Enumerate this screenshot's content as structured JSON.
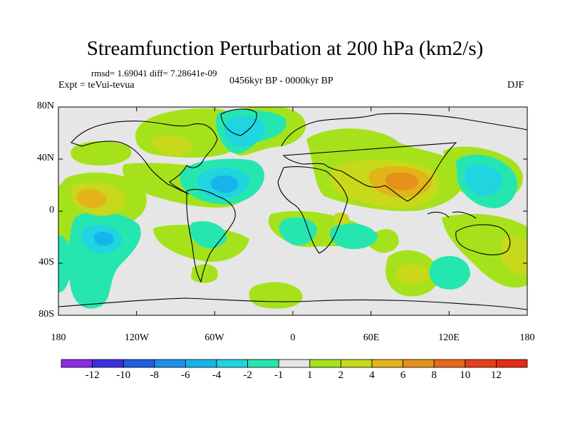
{
  "header": {
    "title": "Streamfunction Perturbation at 200 hPa (km2/s)",
    "stats": "rmsd= 1.69041 diff= 7.28641e-09",
    "experiment": "Expt = teVui-tevua",
    "period": "0456kyr BP - 0000kyr BP",
    "season": "DJF"
  },
  "axes": {
    "lat_labels": [
      "80N",
      "40N",
      "0",
      "40S",
      "80S"
    ],
    "lon_labels": [
      "180",
      "120W",
      "60W",
      "0",
      "60E",
      "120E",
      "180"
    ]
  },
  "colorbar": {
    "labels": [
      "-12",
      "-10",
      "-8",
      "-6",
      "-4",
      "-2",
      "-1",
      "1",
      "2",
      "4",
      "6",
      "8",
      "10",
      "12"
    ],
    "colors": [
      "#8a2be2",
      "#3a2fe0",
      "#1f5fe0",
      "#1e8ee8",
      "#16b4ea",
      "#20d4e0",
      "#26e6b0",
      "#e6e6e6",
      "#a6e21c",
      "#c8d81a",
      "#e2b41a",
      "#e6921a",
      "#e66a1a",
      "#e6401a",
      "#e62a14"
    ]
  },
  "colors": {
    "background_field": "#e6e6e6",
    "coastline": "#000000"
  }
}
